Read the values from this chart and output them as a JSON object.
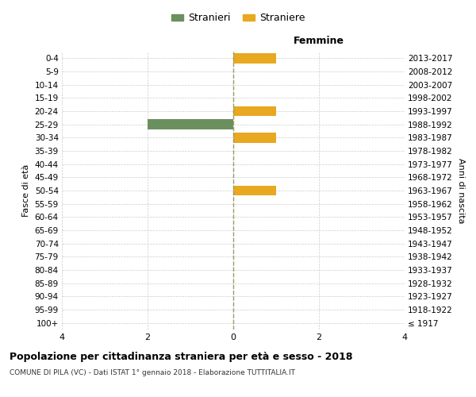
{
  "age_groups": [
    "100+",
    "95-99",
    "90-94",
    "85-89",
    "80-84",
    "75-79",
    "70-74",
    "65-69",
    "60-64",
    "55-59",
    "50-54",
    "45-49",
    "40-44",
    "35-39",
    "30-34",
    "25-29",
    "20-24",
    "15-19",
    "10-14",
    "5-9",
    "0-4"
  ],
  "birth_years": [
    "≤ 1917",
    "1918-1922",
    "1923-1927",
    "1928-1932",
    "1933-1937",
    "1938-1942",
    "1943-1947",
    "1948-1952",
    "1953-1957",
    "1958-1962",
    "1963-1967",
    "1968-1972",
    "1973-1977",
    "1978-1982",
    "1983-1987",
    "1988-1992",
    "1993-1997",
    "1998-2002",
    "2003-2007",
    "2008-2012",
    "2013-2017"
  ],
  "males": [
    0,
    0,
    0,
    0,
    0,
    0,
    0,
    0,
    0,
    0,
    0,
    0,
    0,
    0,
    0,
    2,
    0,
    0,
    0,
    0,
    0
  ],
  "females": [
    0,
    0,
    0,
    0,
    0,
    0,
    0,
    0,
    0,
    0,
    1,
    0,
    0,
    0,
    1,
    0,
    1,
    0,
    0,
    0,
    1
  ],
  "male_color": "#6b8f5e",
  "female_color": "#e8a820",
  "xlim": 4,
  "xlabel_right": "Femmine",
  "ylabel_left": "Fasce di età",
  "ylabel_right": "Anni di nascita",
  "title": "Popolazione per cittadinanza straniera per età e sesso - 2018",
  "subtitle": "COMUNE DI PILA (VC) - Dati ISTAT 1° gennaio 2018 - Elaborazione TUTTITALIA.IT",
  "legend_stranieri": "Stranieri",
  "legend_straniere": "Straniere",
  "background_color": "#ffffff",
  "grid_color": "#cccccc",
  "bar_height": 0.75
}
